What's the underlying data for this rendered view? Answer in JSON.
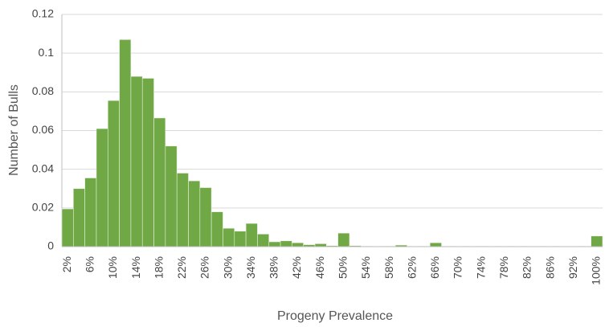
{
  "chart_data": {
    "type": "bar",
    "x_label": "Progeny Prevalence",
    "y_label": "Number of Bulls",
    "categories": [
      "2%",
      null,
      "6%",
      null,
      "10%",
      null,
      "14%",
      null,
      "18%",
      null,
      "22%",
      null,
      "26%",
      null,
      "30%",
      null,
      "34%",
      null,
      "38%",
      null,
      "42%",
      null,
      "46%",
      null,
      "50%",
      null,
      "54%",
      null,
      "58%",
      null,
      "62%",
      null,
      "66%",
      null,
      "70%",
      null,
      "74%",
      null,
      "78%",
      null,
      "82%",
      null,
      "86%",
      null,
      "92%",
      null,
      "100%"
    ],
    "values": [
      0.0195,
      0.03,
      0.0355,
      0.061,
      0.0755,
      0.107,
      0.088,
      0.087,
      0.0665,
      0.052,
      0.038,
      0.034,
      0.0305,
      0.018,
      0.0095,
      0.008,
      0.012,
      0.0065,
      0.0025,
      0.003,
      0.002,
      0.001,
      0.0015,
      0.0005,
      0.007,
      0.0005,
      0.0003,
      0.0002,
      0.0003,
      0.0008,
      0.0002,
      0.0002,
      0.002,
      0.0002,
      0.0002,
      0.0002,
      0.0002,
      0.0002,
      0.0002,
      0.0002,
      0.0002,
      0.0002,
      0.0002,
      0.0002,
      0.0002,
      0.0002,
      0.0055
    ],
    "color": "#70a845",
    "ylim": [
      0,
      0.12
    ],
    "yticks": [
      0,
      0.02,
      0.04,
      0.06,
      0.08,
      0.1,
      0.12
    ],
    "grid": true
  }
}
